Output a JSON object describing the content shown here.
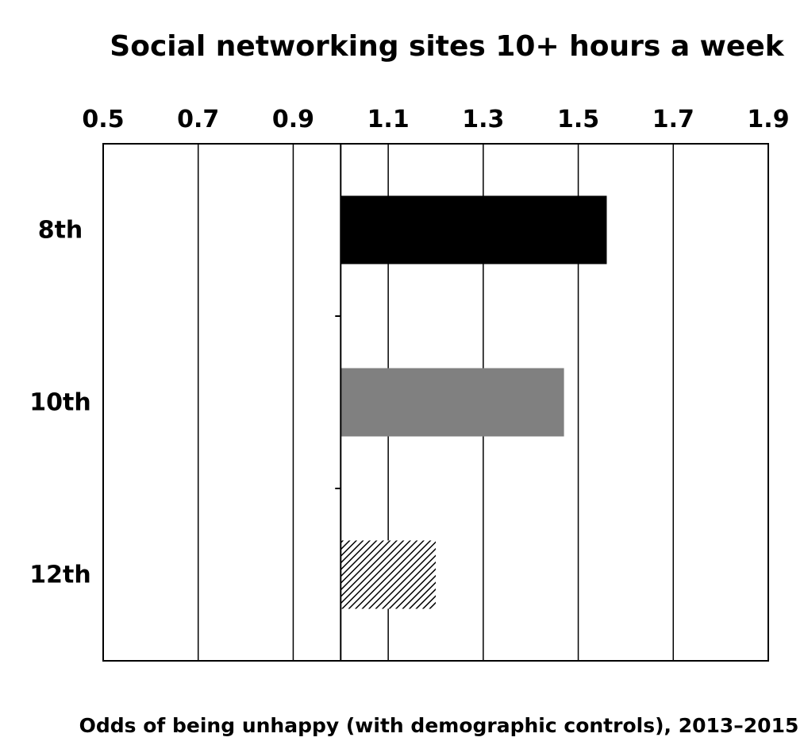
{
  "chart_data": {
    "type": "bar",
    "orientation": "horizontal",
    "title": "Social networking sites 10+ hours a week",
    "xlabel": "Odds of being unhappy (with demographic controls), 2013–2015",
    "ylabel": "",
    "baseline": 1.0,
    "xlim": [
      0.5,
      1.9
    ],
    "x_ticks": [
      "0.5",
      "0.7",
      "0.9",
      "1.1",
      "1.3",
      "1.5",
      "1.7",
      "1.9"
    ],
    "x_tick_values": [
      0.5,
      0.7,
      0.9,
      1.1,
      1.3,
      1.5,
      1.7,
      1.9
    ],
    "x_axis_position": "top",
    "grid": true,
    "categories": [
      "8th",
      "10th",
      "12th"
    ],
    "values": [
      1.56,
      1.47,
      1.2
    ],
    "colors": [
      "#000000",
      "#808080",
      "#hatched"
    ],
    "fills": [
      "solid-black",
      "solid-gray",
      "diagonal-hatch"
    ]
  }
}
